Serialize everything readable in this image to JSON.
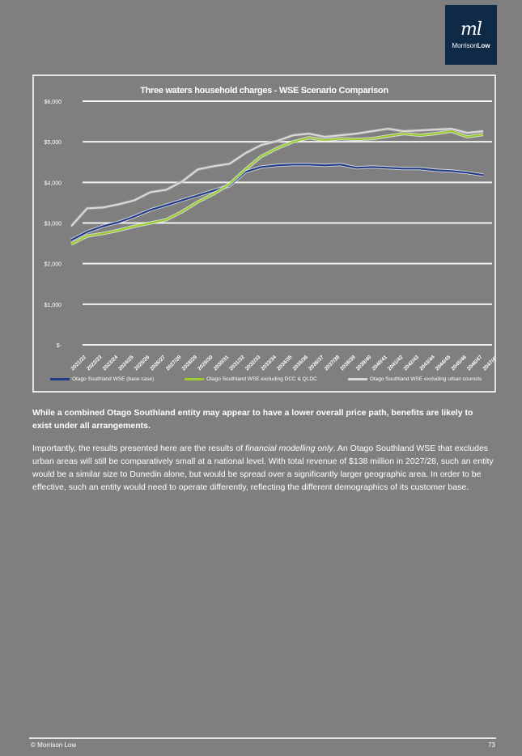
{
  "logo": {
    "mark": "ml",
    "text_light": "Morrison",
    "text_bold": "Low"
  },
  "chart_data": {
    "type": "line",
    "title": "Three waters household charges - WSE Scenario Comparison",
    "xlabel": "",
    "ylabel": "",
    "ylim": [
      0,
      6000
    ],
    "yticks": [
      "$-",
      "$1,000",
      "$2,000",
      "$3,000",
      "$4,000",
      "$5,000",
      "$6,000"
    ],
    "ytick_values": [
      0,
      1000,
      2000,
      3000,
      4000,
      5000,
      6000
    ],
    "grid": true,
    "legend_position": "bottom",
    "categories": [
      "2021/22",
      "2022/23",
      "2023/24",
      "2024/25",
      "2025/26",
      "2026/27",
      "2027/28",
      "2028/29",
      "2029/30",
      "2030/31",
      "2031/32",
      "2032/33",
      "2033/34",
      "2034/35",
      "2035/36",
      "2036/37",
      "2037/38",
      "2038/39",
      "2039/40",
      "2040/41",
      "2041/42",
      "2042/43",
      "2043/44",
      "2044/45",
      "2045/46",
      "2046/47",
      "2047/48"
    ],
    "series": [
      {
        "name": "Otago Southland WSE (base case)",
        "color": "#1f3c88",
        "values": [
          2580,
          2780,
          2920,
          3020,
          3160,
          3320,
          3440,
          3560,
          3680,
          3800,
          3920,
          4260,
          4380,
          4420,
          4440,
          4440,
          4420,
          4440,
          4360,
          4380,
          4360,
          4340,
          4340,
          4300,
          4280,
          4240,
          4180
        ]
      },
      {
        "name": "Otago Southland WSE excluding DCC & QLDC",
        "color": "#9acd32",
        "values": [
          2480,
          2680,
          2740,
          2820,
          2920,
          3000,
          3080,
          3280,
          3520,
          3720,
          3960,
          4320,
          4640,
          4840,
          5000,
          5100,
          5040,
          5080,
          5060,
          5080,
          5140,
          5200,
          5160,
          5200,
          5260,
          5120,
          5180
        ]
      },
      {
        "name": "Otago Southland WSE excluding urban councils",
        "color": "#d9d9d9",
        "values": [
          2920,
          3360,
          3380,
          3460,
          3560,
          3760,
          3820,
          4020,
          4320,
          4400,
          4460,
          4720,
          4920,
          5020,
          5160,
          5200,
          5120,
          5160,
          5200,
          5260,
          5320,
          5260,
          5280,
          5300,
          5320,
          5220,
          5260
        ]
      }
    ]
  },
  "body": {
    "p1": "While a combined Otago Southland entity may appear to have a lower overall price path, benefits are likely to exist under all arrangements.",
    "p2_a": "Importantly, the results presented here are the results of ",
    "p2_em": "financial modelling only",
    "p2_b": ". An Otago Southland WSE that excludes urban areas will still be comparatively small at a national level. With total revenue of $138 million in 2027/28, such an entity would be a similar size to Dunedin alone, but would be spread over a significantly larger geographic area.  In order to be effective, such an entity would need to operate differently, reflecting the different demographics of its customer base."
  },
  "footer": {
    "left": "© Morrison Low",
    "page": "73"
  }
}
